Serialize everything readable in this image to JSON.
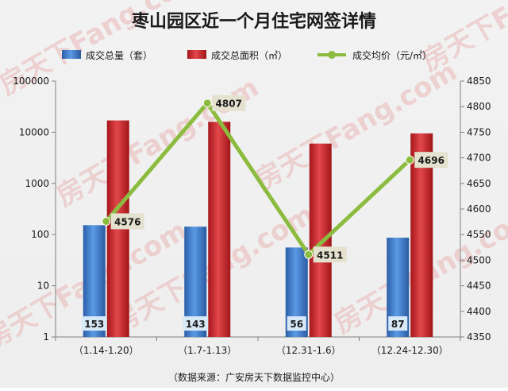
{
  "colors": {
    "bar_count": "#3a78c9",
    "bar_area": "#c8262b",
    "line_price": "#8cbc3f",
    "watermark": "#e9a9a9"
  },
  "source": "（数据来源：广安房天下数据监控中心）",
  "watermark_text": "房天下Fang.com",
  "chart_data": {
    "type": "bar",
    "title": "枣山园区近一个月住宅网签详情",
    "categories": [
      "（1.14-1.20）",
      "（1.7-1.13）",
      "（12.31-1.6）",
      "（12.24-12.30）"
    ],
    "series": [
      {
        "name": "成交总量（套）",
        "type": "bar",
        "axis": "left",
        "values": [
          153,
          143,
          56,
          87
        ],
        "data_labels": [
          "153",
          "143",
          "56",
          "87"
        ]
      },
      {
        "name": "成交总面积（㎡）",
        "type": "bar",
        "axis": "left",
        "values": [
          17000,
          16000,
          6000,
          9500
        ]
      },
      {
        "name": "成交均价（元/㎡）",
        "type": "line",
        "axis": "right",
        "values": [
          4576,
          4807,
          4511,
          4696
        ],
        "data_labels": [
          "4576",
          "4807",
          "4511",
          "4696"
        ]
      }
    ],
    "y_left": {
      "scale": "log",
      "ylim": [
        1,
        100000
      ],
      "ticks": [
        1,
        10,
        100,
        1000,
        10000,
        100000
      ],
      "tick_labels": [
        "1",
        "10",
        "100",
        "1000",
        "10000",
        "100000"
      ]
    },
    "y_right": {
      "scale": "linear",
      "ylim": [
        4350,
        4850
      ],
      "ticks": [
        4350,
        4400,
        4450,
        4500,
        4550,
        4600,
        4650,
        4700,
        4750,
        4800,
        4850
      ],
      "tick_labels": [
        "4350",
        "4400",
        "4450",
        "4500",
        "4550",
        "4600",
        "4650",
        "4700",
        "4750",
        "4800",
        "4850"
      ]
    },
    "grid": false,
    "legend_position": "top"
  }
}
